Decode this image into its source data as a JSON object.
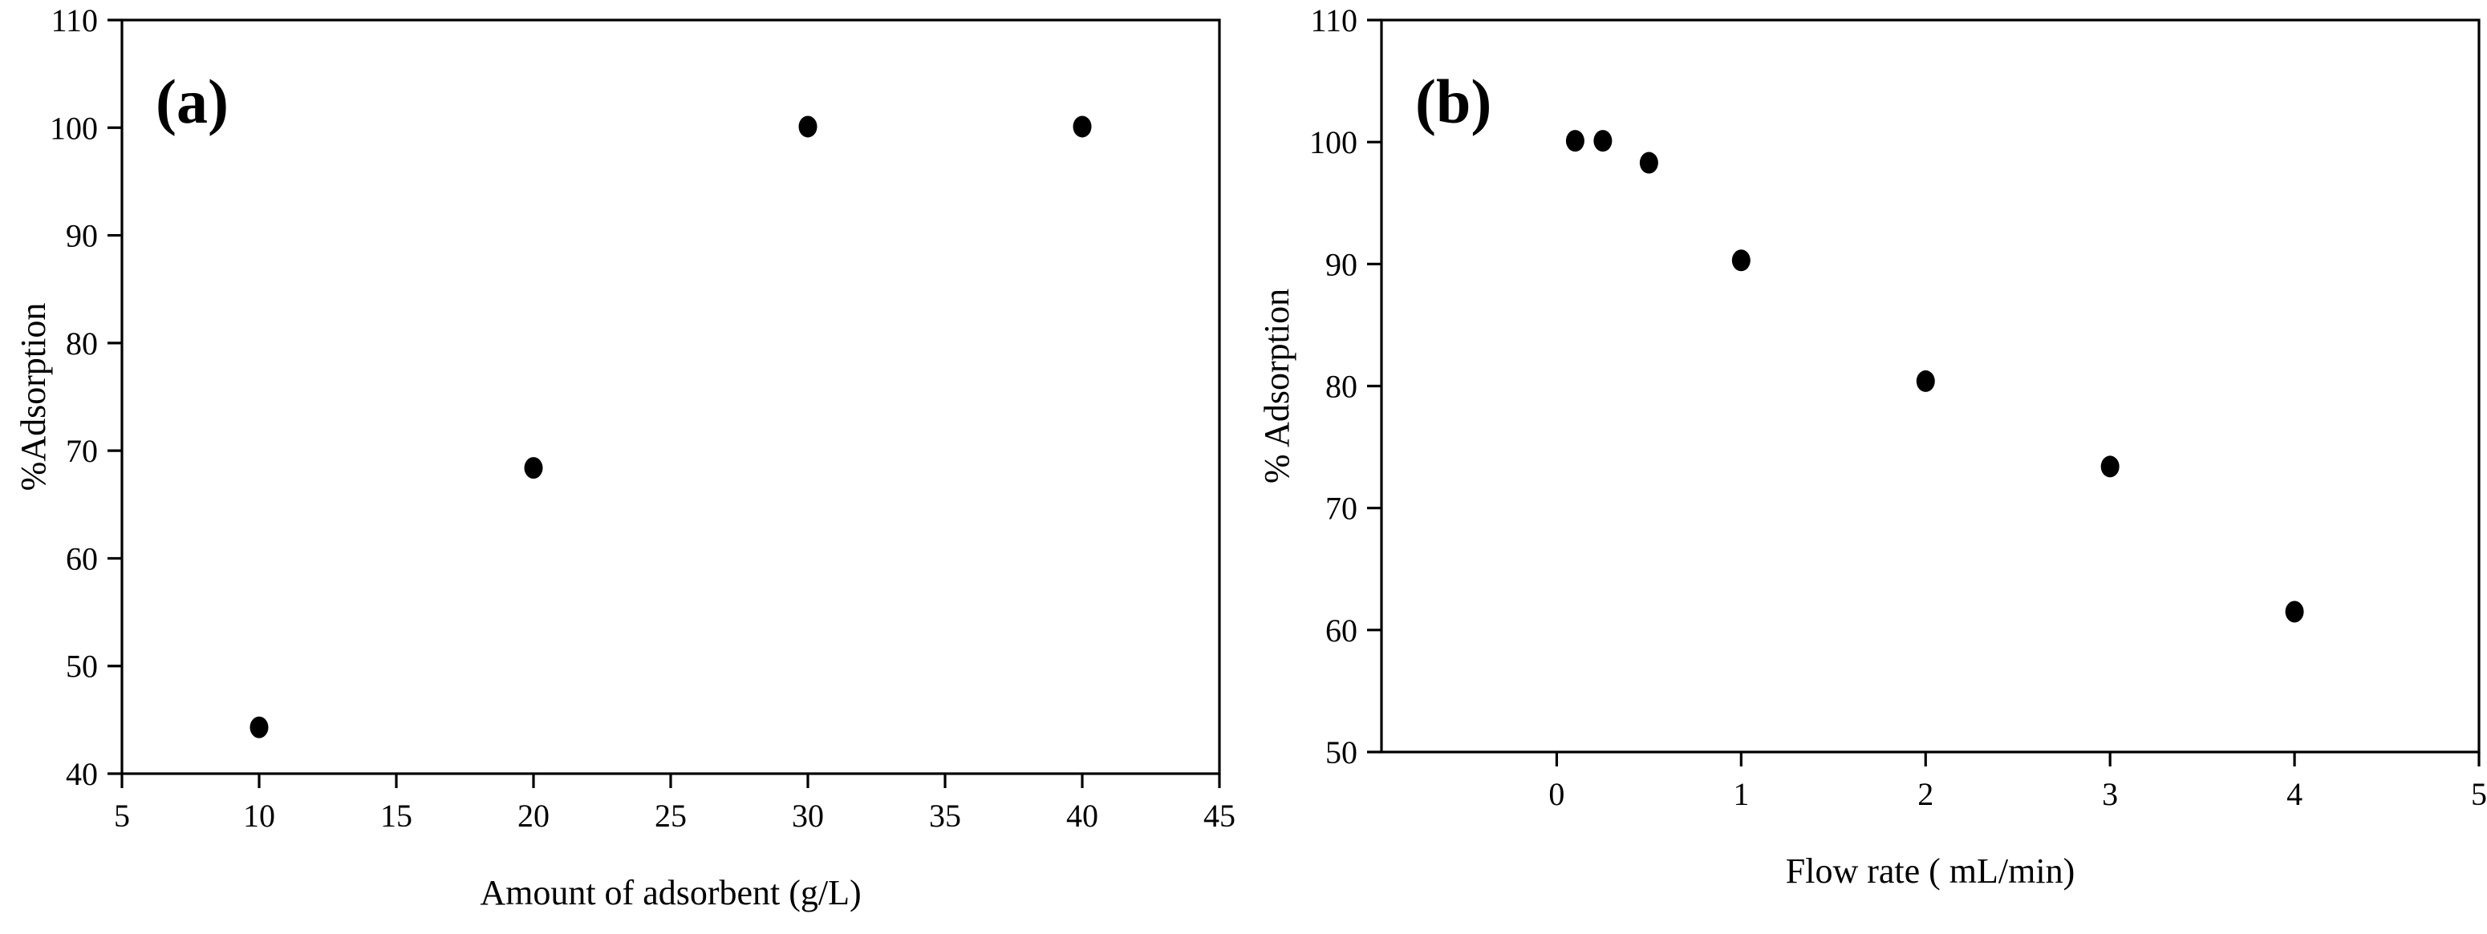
{
  "figure": {
    "background_color": "#ffffff",
    "axis_color": "#000000",
    "marker_color": "#000000"
  },
  "chart_data": [
    {
      "type": "scatter",
      "panel_label": "(a)",
      "xlabel": "Amount of adsorbent (g/L)",
      "ylabel": "%Adsorption",
      "xlim": [
        5,
        45
      ],
      "ylim": [
        40,
        110
      ],
      "xticks": [
        5,
        10,
        15,
        20,
        25,
        30,
        35,
        40,
        45
      ],
      "yticks": [
        40,
        50,
        60,
        70,
        80,
        90,
        100,
        110
      ],
      "grid": false,
      "legend_position": "none",
      "marker": "filled-circle",
      "points": [
        [
          10,
          44.3
        ],
        [
          20,
          68.4
        ],
        [
          30,
          100.1
        ],
        [
          40,
          100.1
        ]
      ]
    },
    {
      "type": "scatter",
      "panel_label": "(b)",
      "xlabel": "Flow rate ( mL/min)",
      "ylabel": "% Adsorption",
      "xlim": [
        -0.95,
        5
      ],
      "ylim": [
        50,
        110
      ],
      "xticks": [
        0,
        1,
        2,
        3,
        4,
        5
      ],
      "yticks": [
        50,
        60,
        70,
        80,
        90,
        100,
        110
      ],
      "grid": false,
      "legend_position": "none",
      "marker": "filled-circle",
      "points": [
        [
          0.1,
          100.1
        ],
        [
          0.25,
          100.1
        ],
        [
          0.5,
          98.3
        ],
        [
          1,
          90.3
        ],
        [
          2,
          80.4
        ],
        [
          3,
          73.4
        ],
        [
          4,
          61.5
        ]
      ]
    }
  ]
}
